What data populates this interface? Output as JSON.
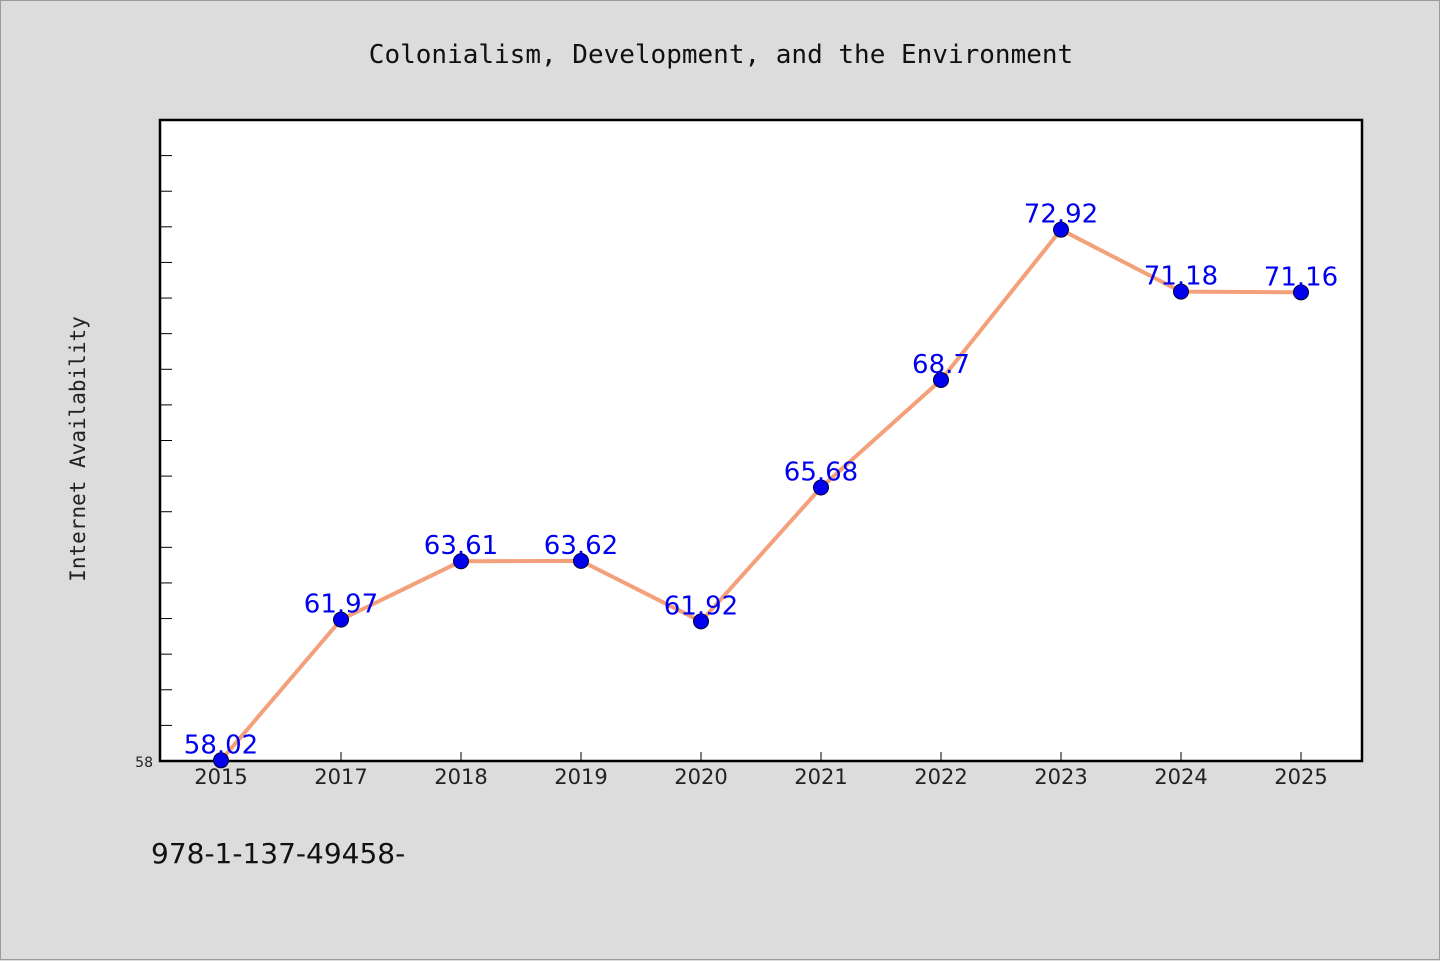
{
  "chart_data": {
    "type": "line",
    "title": "Colonialism, Development, and the Environment",
    "ylabel": "Internet Availability",
    "xlabel": "",
    "categories": [
      "2015",
      "2017",
      "2018",
      "2019",
      "2020",
      "2021",
      "2022",
      "2023",
      "2024",
      "2025"
    ],
    "series": [
      {
        "values": [
          58.02,
          61.97,
          63.61,
          63.62,
          61.92,
          65.68,
          68.7,
          72.92,
          71.18,
          71.16
        ],
        "data_labels": [
          "58.02",
          "61.97",
          "63.61",
          "63.62",
          "61.92",
          "65.68",
          "68.7",
          "72.92",
          "71.18",
          "71.16"
        ]
      }
    ],
    "ylim": [
      58,
      76
    ],
    "ytick_label": "58",
    "grid": false,
    "legend": "none",
    "colors": {
      "line": "#f4a07a",
      "marker": "#0000ee",
      "label": "#0000ee",
      "plot_bg": "#ffffff",
      "page_bg": "#dcdcdc"
    }
  },
  "footer": {
    "text": "978-1-137-49458-"
  }
}
